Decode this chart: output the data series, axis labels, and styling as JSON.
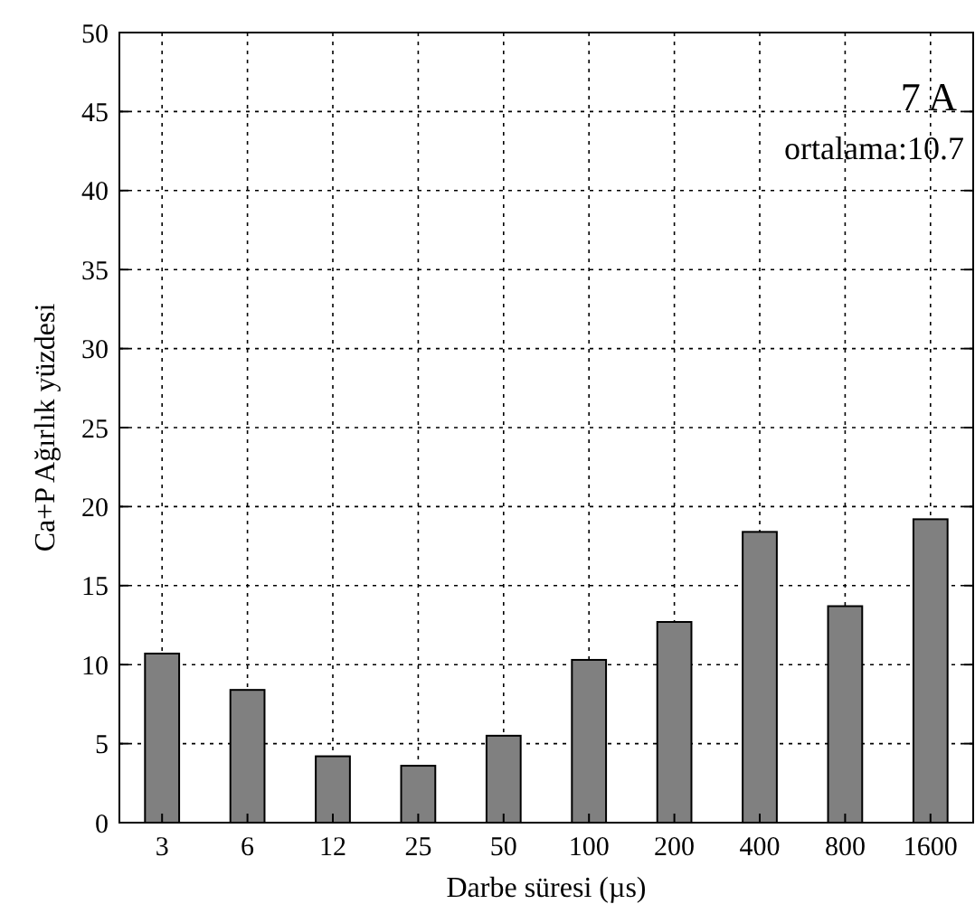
{
  "chart_data": {
    "type": "bar",
    "xlabel": "Darbe süresi (µs)",
    "ylabel": "Ca+P Ağırlık yüzdesi",
    "categories": [
      "3",
      "6",
      "12",
      "25",
      "50",
      "100",
      "200",
      "400",
      "800",
      "1600"
    ],
    "values": [
      10.7,
      8.4,
      4.2,
      3.6,
      5.5,
      10.3,
      12.7,
      18.4,
      13.7,
      19.2
    ],
    "color": "#808080",
    "ylim": [
      0,
      50
    ],
    "yticks": [
      0,
      5,
      10,
      15,
      20,
      25,
      30,
      35,
      40,
      45,
      50
    ],
    "grid": true,
    "annotations": [
      "7 A",
      "ortalama:10.7"
    ]
  }
}
